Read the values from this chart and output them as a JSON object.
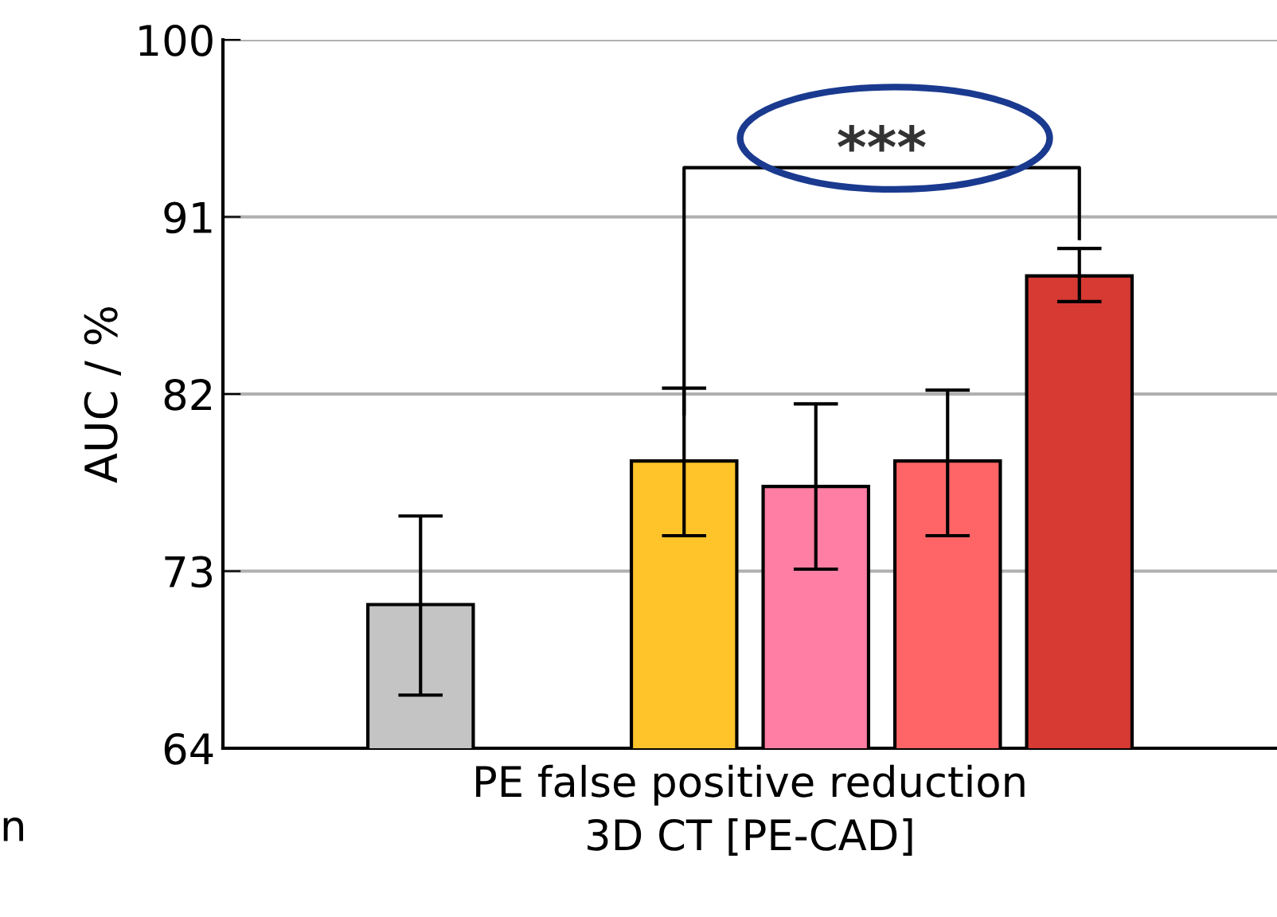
{
  "chart_data": {
    "type": "bar",
    "categories": [
      null,
      null,
      null,
      null,
      null,
      null,
      null,
      null
    ],
    "values": [
      null,
      71.3,
      null,
      78.6,
      77.3,
      78.6,
      88.0,
      null
    ],
    "errors": [
      null,
      [
        66.7,
        75.8
      ],
      null,
      [
        74.8,
        82.3
      ],
      [
        73.1,
        81.5
      ],
      [
        74.8,
        82.2
      ],
      [
        86.7,
        89.4
      ],
      null
    ],
    "colors": [
      "#ffffff",
      "#c4c4c4",
      "#ffffff",
      "#fec42a",
      "#ff7ea3",
      "#ff6566",
      "#d63a33",
      "#ffffff"
    ],
    "ylabel": "AUC / %",
    "xlabel": "PE false positive reduction\n3D CT [PE-CAD]",
    "ylim": [
      64,
      100
    ],
    "yticks": [
      64,
      73,
      82,
      91,
      100
    ],
    "grid": "y",
    "annotations": [
      "***",
      "n"
    ]
  }
}
